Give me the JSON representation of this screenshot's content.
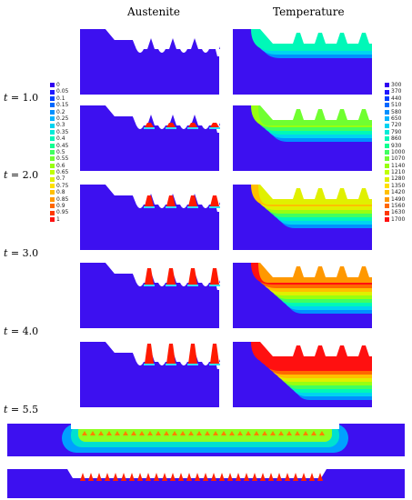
{
  "headers": {
    "austenite": "Austenite",
    "temperature": "Temperature"
  },
  "time_labels": [
    {
      "value": "1.0"
    },
    {
      "value": "2.0"
    },
    {
      "value": "3.0"
    },
    {
      "value": "4.0"
    },
    {
      "value": "5.5"
    }
  ],
  "time_prefix": "t =",
  "legend_austenite": {
    "labels": [
      "0",
      "0.05",
      "0.1",
      "0.15",
      "0.2",
      "0.25",
      "0.3",
      "0.35",
      "0.4",
      "0.45",
      "0.5",
      "0.55",
      "0.6",
      "0.65",
      "0.7",
      "0.75",
      "0.8",
      "0.85",
      "0.9",
      "0.95",
      "1"
    ]
  },
  "legend_temperature": {
    "labels": [
      "300",
      "370",
      "440",
      "510",
      "580",
      "650",
      "720",
      "790",
      "860",
      "930",
      "1000",
      "1070",
      "1140",
      "1210",
      "1280",
      "1350",
      "1420",
      "1490",
      "1560",
      "1630",
      "1700"
    ]
  },
  "colors": {
    "background": "#3d10f0",
    "scale": [
      "#3000f0",
      "#2018ff",
      "#0040ff",
      "#0068ff",
      "#0090ff",
      "#00b4ff",
      "#00d4f0",
      "#00ecd8",
      "#00f8b8",
      "#10ff90",
      "#40ff60",
      "#70ff30",
      "#98ff10",
      "#c0ff00",
      "#e0f000",
      "#ffe000",
      "#ffc000",
      "#ff9800",
      "#ff6800",
      "#ff3800",
      "#ff1010"
    ]
  }
}
